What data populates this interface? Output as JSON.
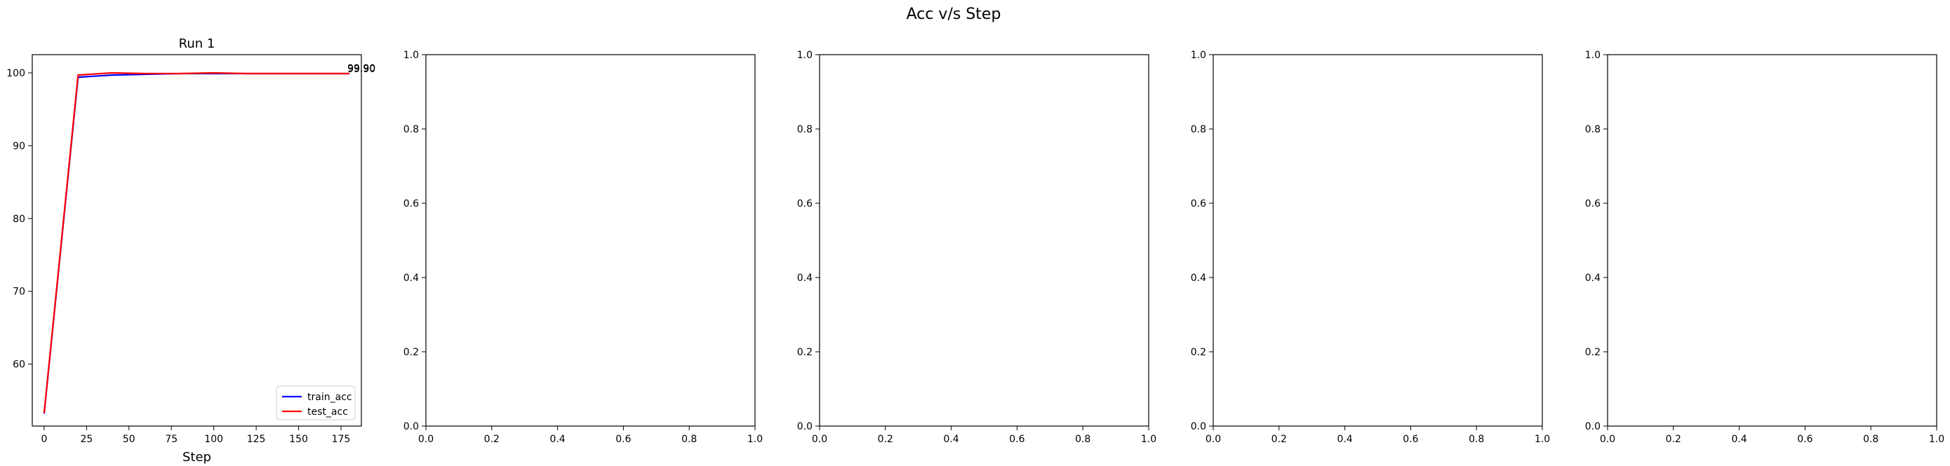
{
  "figure": {
    "suptitle": "Acc v/s Step"
  },
  "chart_data": [
    {
      "type": "line",
      "title": "Run 1",
      "xlabel": "Step",
      "ylabel": "",
      "xlim": [
        -7,
        187
      ],
      "ylim": [
        51.5,
        102.5
      ],
      "xticks": [
        0,
        25,
        50,
        75,
        100,
        125,
        150,
        175
      ],
      "yticks": [
        60,
        70,
        80,
        90,
        100
      ],
      "grid": false,
      "legend_position": "bottom-right",
      "series": [
        {
          "name": "train_acc",
          "color": "#0000ff",
          "x": [
            0,
            20,
            40,
            60,
            80,
            100,
            120,
            140,
            160,
            180
          ],
          "y": [
            53.2,
            99.4,
            99.7,
            99.8,
            99.9,
            99.9,
            99.9,
            99.9,
            99.9,
            99.9
          ]
        },
        {
          "name": "test_acc",
          "color": "#ff0000",
          "x": [
            0,
            20,
            40,
            60,
            80,
            100,
            120,
            140,
            160,
            180
          ],
          "y": [
            53.3,
            99.7,
            100.0,
            99.9,
            99.9,
            100.0,
            99.9,
            99.9,
            99.9,
            99.9
          ]
        }
      ],
      "annotations": [
        {
          "x": 180,
          "y": 99.9,
          "text": "99.90"
        },
        {
          "x": 180,
          "y": 99.9,
          "text": "99.90"
        }
      ]
    },
    {
      "type": "line",
      "title": "",
      "xlabel": "",
      "ylabel": "",
      "xlim": [
        0,
        1
      ],
      "ylim": [
        0,
        1
      ],
      "xticks": [
        "0.0",
        "0.2",
        "0.4",
        "0.6",
        "0.8",
        "1.0"
      ],
      "yticks": [
        "0.0",
        "0.2",
        "0.4",
        "0.6",
        "0.8",
        "1.0"
      ],
      "grid": false,
      "series": []
    },
    {
      "type": "line",
      "title": "",
      "xlabel": "",
      "ylabel": "",
      "xlim": [
        0,
        1
      ],
      "ylim": [
        0,
        1
      ],
      "xticks": [
        "0.0",
        "0.2",
        "0.4",
        "0.6",
        "0.8",
        "1.0"
      ],
      "yticks": [
        "0.0",
        "0.2",
        "0.4",
        "0.6",
        "0.8",
        "1.0"
      ],
      "grid": false,
      "series": []
    },
    {
      "type": "line",
      "title": "",
      "xlabel": "",
      "ylabel": "",
      "xlim": [
        0,
        1
      ],
      "ylim": [
        0,
        1
      ],
      "xticks": [
        "0.0",
        "0.2",
        "0.4",
        "0.6",
        "0.8",
        "1.0"
      ],
      "yticks": [
        "0.0",
        "0.2",
        "0.4",
        "0.6",
        "0.8",
        "1.0"
      ],
      "grid": false,
      "series": []
    },
    {
      "type": "line",
      "title": "",
      "xlabel": "",
      "ylabel": "",
      "xlim": [
        0,
        1
      ],
      "ylim": [
        0,
        1
      ],
      "xticks": [
        "0.0",
        "0.2",
        "0.4",
        "0.6",
        "0.8",
        "1.0"
      ],
      "yticks": [
        "0.0",
        "0.2",
        "0.4",
        "0.6",
        "0.8",
        "1.0"
      ],
      "grid": false,
      "series": []
    }
  ]
}
